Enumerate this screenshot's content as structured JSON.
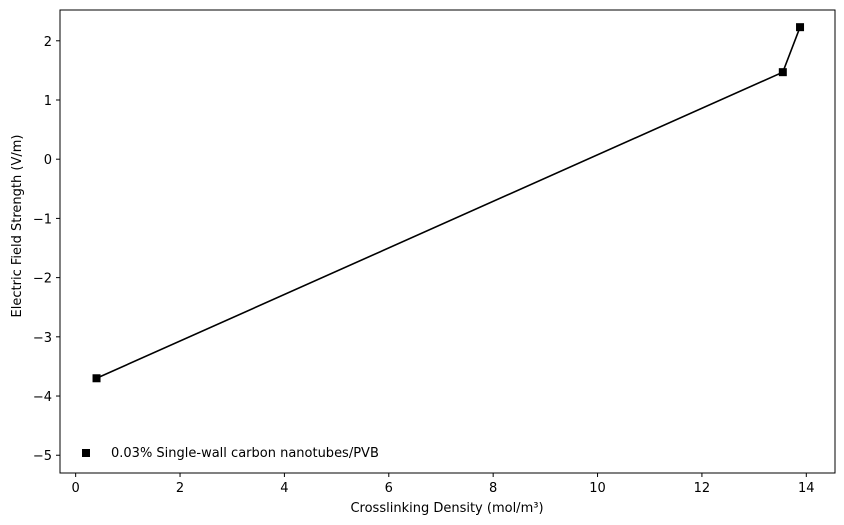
{
  "chart_data": {
    "type": "line",
    "xlabel": "Crosslinking Density (mol/m³)",
    "ylabel": "Electric Field Strength (V/m)",
    "xlim": [
      -0.3,
      14.55
    ],
    "ylim": [
      -5.3,
      2.52
    ],
    "x_ticks": [
      0,
      2,
      4,
      6,
      8,
      10,
      12,
      14
    ],
    "y_ticks": [
      -5,
      -4,
      -3,
      -2,
      -1,
      0,
      1,
      2
    ],
    "x_tick_labels": [
      "0",
      "2",
      "4",
      "6",
      "8",
      "10",
      "12",
      "14"
    ],
    "y_tick_labels": [
      "−5",
      "−4",
      "−3",
      "−2",
      "−1",
      "0",
      "1",
      "2"
    ],
    "grid": false,
    "legend_position": "lower-left",
    "series": [
      {
        "name": "0.03% Single-wall carbon nanotubes/PVB",
        "marker": "square",
        "color": "#000000",
        "x": [
          0.4,
          13.55,
          13.88
        ],
        "y": [
          -3.7,
          1.47,
          2.23
        ]
      }
    ]
  }
}
